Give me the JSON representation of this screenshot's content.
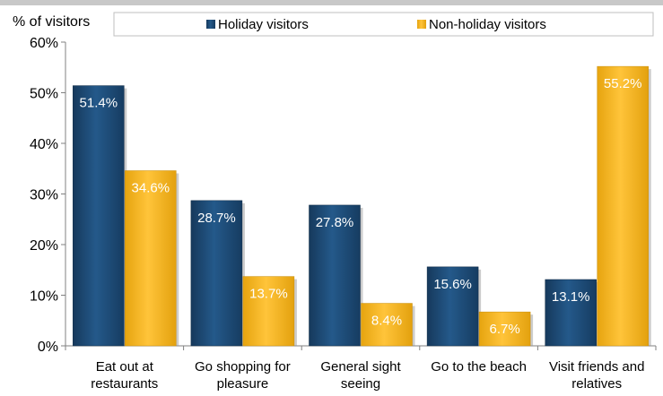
{
  "chart_data": {
    "type": "bar",
    "ylabel": "% of visitors",
    "xlabel": "",
    "ylim": [
      0,
      60
    ],
    "y_ticks": [
      "0%",
      "10%",
      "20%",
      "30%",
      "40%",
      "50%",
      "60%"
    ],
    "y_tick_values": [
      0,
      10,
      20,
      30,
      40,
      50,
      60
    ],
    "categories": [
      [
        "Eat out at",
        "restaurants"
      ],
      [
        "Go shopping for",
        "pleasure"
      ],
      [
        "General sight",
        "seeing"
      ],
      [
        "Go to the beach"
      ],
      [
        "Visit friends and",
        "relatives"
      ]
    ],
    "series": [
      {
        "name": "Holiday visitors",
        "values": [
          51.4,
          28.7,
          27.8,
          15.6,
          13.1
        ],
        "labels": [
          "51.4%",
          "28.7%",
          "27.8%",
          "15.6%",
          "13.1%"
        ],
        "color": "#1f4e79"
      },
      {
        "name": "Non-holiday visitors",
        "values": [
          34.6,
          13.7,
          8.4,
          6.7,
          55.2
        ],
        "labels": [
          "34.6%",
          "13.7%",
          "8.4%",
          "6.7%",
          "55.2%"
        ],
        "color": "#f2b31b"
      }
    ],
    "grid": false,
    "legend_position": "top"
  }
}
